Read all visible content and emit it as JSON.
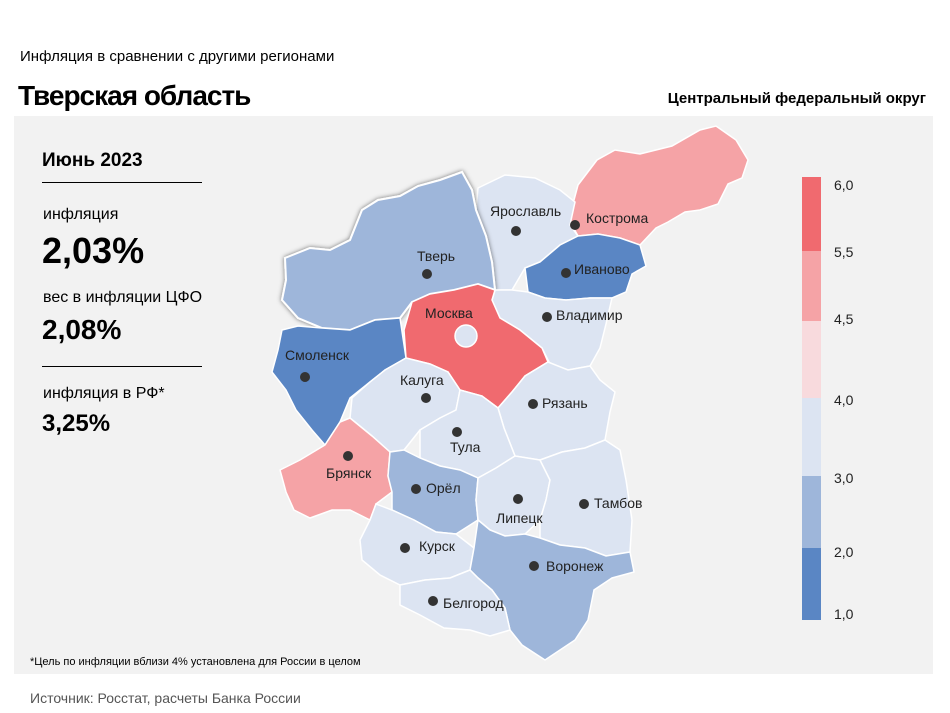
{
  "header": {
    "subtitle": "Инфляция  в сравнении  с другими  регионами",
    "title": "Тверская область",
    "district": "Центральный федеральный округ"
  },
  "stats": {
    "period": "Июнь 2023",
    "inflation_label": "инфляция",
    "inflation_value": "2,03%",
    "weight_label": "вес в инфляции  ЦФО",
    "weight_value": "2,08%",
    "rf_label": "инфляция  в РФ*",
    "rf_value": "3,25%"
  },
  "legend": {
    "ticks": [
      "6,0",
      "5,5",
      "4,5",
      "4,0",
      "3,0",
      "2,0",
      "1,0"
    ],
    "colors": [
      "#f06a6f",
      "#f5a3a6",
      "#f8dadd",
      "#dce4f2",
      "#9eb6da",
      "#5a86c4"
    ]
  },
  "regions": [
    {
      "name": "Ярославль",
      "color": "#dce4f2"
    },
    {
      "name": "Кострома",
      "color": "#f5a3a6"
    },
    {
      "name": "Тверь",
      "color": "#9eb6da"
    },
    {
      "name": "Иваново",
      "color": "#5a86c4"
    },
    {
      "name": "Москва",
      "color": "#f06a6f"
    },
    {
      "name": "Владимир",
      "color": "#dce4f2"
    },
    {
      "name": "Смоленск",
      "color": "#5a86c4"
    },
    {
      "name": "Калуга",
      "color": "#dce4f2"
    },
    {
      "name": "Рязань",
      "color": "#dce4f2"
    },
    {
      "name": "Тула",
      "color": "#dce4f2"
    },
    {
      "name": "Брянск",
      "color": "#f5a3a6"
    },
    {
      "name": "Орёл",
      "color": "#9eb6da"
    },
    {
      "name": "Липецк",
      "color": "#dce4f2"
    },
    {
      "name": "Тамбов",
      "color": "#dce4f2"
    },
    {
      "name": "Курск",
      "color": "#dce4f2"
    },
    {
      "name": "Воронеж",
      "color": "#9eb6da"
    },
    {
      "name": "Белгород",
      "color": "#dce4f2"
    }
  ],
  "footnote": "*Цель по инфляции вблизи 4% установлена для России в целом",
  "source": "Источник: Росстат, расчеты Банка России"
}
